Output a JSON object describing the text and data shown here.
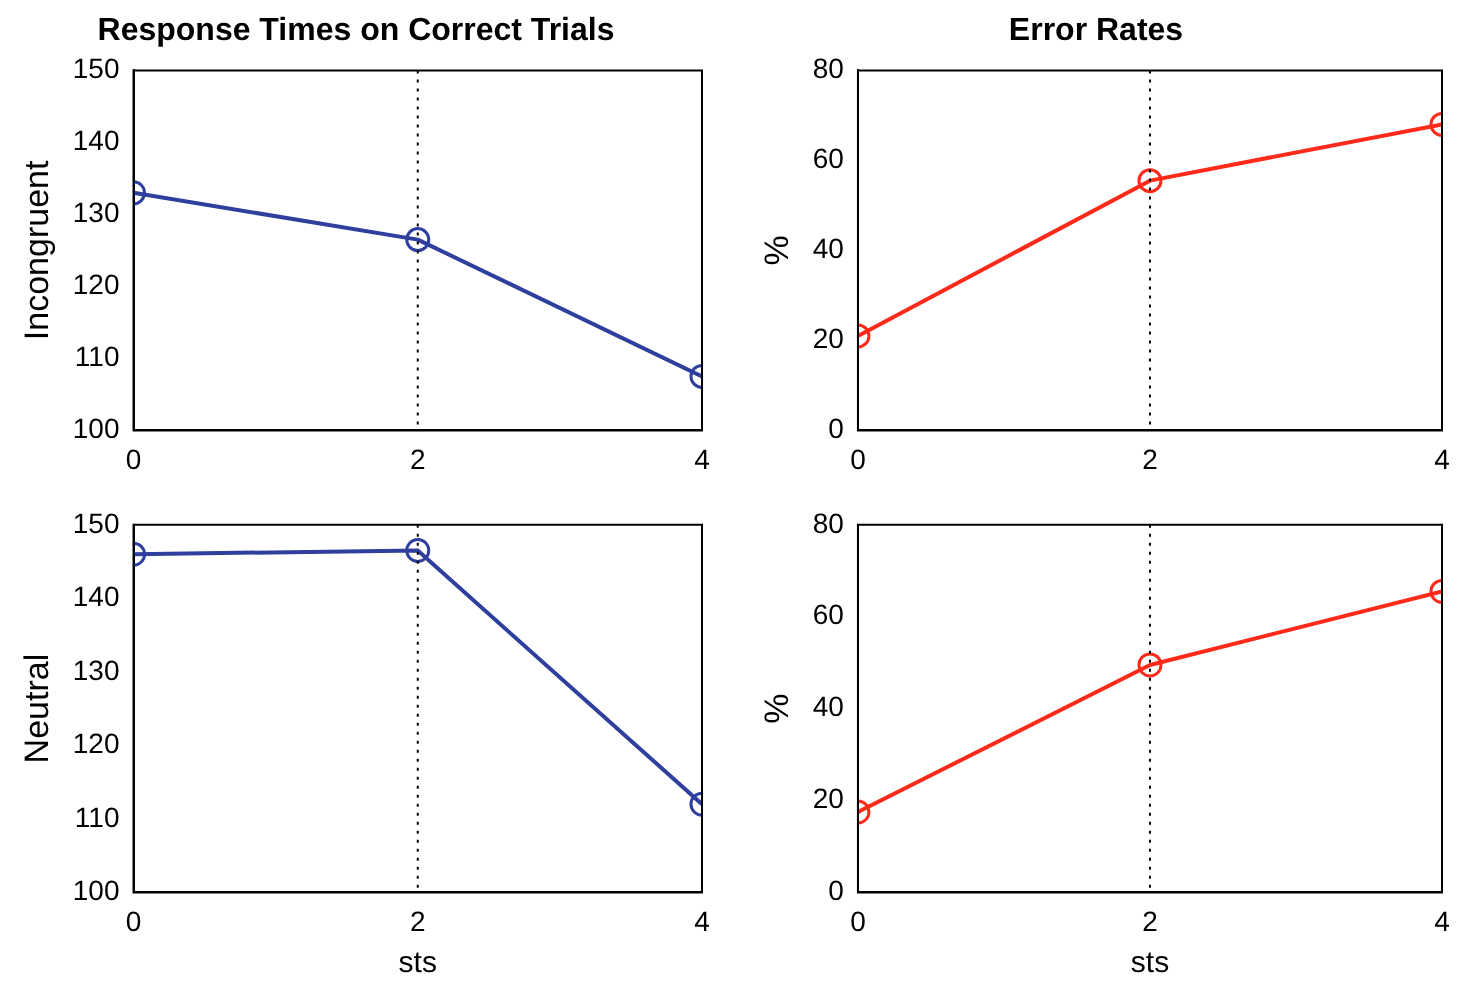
{
  "chart_data": [
    {
      "type": "line",
      "title": "Response Times on Correct Trials",
      "ylabel": "Incongruent",
      "x": [
        0,
        2,
        4
      ],
      "series": [
        {
          "color": "#2e3f9e",
          "values": [
            133,
            126.5,
            107.5
          ]
        }
      ],
      "xlim": [
        0,
        4
      ],
      "xticks": [
        0,
        2,
        4
      ],
      "ylim": [
        100,
        150
      ],
      "yticks": [
        100,
        110,
        120,
        130,
        140,
        150
      ],
      "marker": "circle",
      "ref_lines": [
        {
          "axis": "x",
          "value": 2,
          "line_style": "dotted"
        }
      ]
    },
    {
      "type": "line",
      "title": "Error Rates",
      "ylabel": "%",
      "x": [
        0,
        2,
        4
      ],
      "series": [
        {
          "color": "#ff2a1a",
          "values": [
            21,
            55.5,
            68
          ]
        }
      ],
      "xlim": [
        0,
        4
      ],
      "xticks": [
        0,
        2,
        4
      ],
      "ylim": [
        0,
        80
      ],
      "yticks": [
        0,
        20,
        40,
        60,
        80
      ],
      "marker": "circle",
      "ref_lines": [
        {
          "axis": "x",
          "value": 2,
          "line_style": "dotted"
        }
      ]
    },
    {
      "type": "line",
      "ylabel": "Neutral",
      "xlabel": "sts",
      "x": [
        0,
        2,
        4
      ],
      "series": [
        {
          "color": "#2e3f9e",
          "values": [
            146,
            146.5,
            112
          ]
        }
      ],
      "xlim": [
        0,
        4
      ],
      "xticks": [
        0,
        2,
        4
      ],
      "ylim": [
        100,
        150
      ],
      "yticks": [
        100,
        110,
        120,
        130,
        140,
        150
      ],
      "marker": "circle",
      "ref_lines": [
        {
          "axis": "x",
          "value": 2,
          "line_style": "dotted"
        }
      ]
    },
    {
      "type": "line",
      "ylabel": "%",
      "xlabel": "sts",
      "x": [
        0,
        2,
        4
      ],
      "series": [
        {
          "color": "#ff2a1a",
          "values": [
            17.5,
            49.5,
            65.5
          ]
        }
      ],
      "xlim": [
        0,
        4
      ],
      "xticks": [
        0,
        2,
        4
      ],
      "ylim": [
        0,
        80
      ],
      "yticks": [
        0,
        20,
        40,
        60,
        80
      ],
      "marker": "circle",
      "ref_lines": [
        {
          "axis": "x",
          "value": 2,
          "line_style": "dotted"
        }
      ]
    }
  ]
}
